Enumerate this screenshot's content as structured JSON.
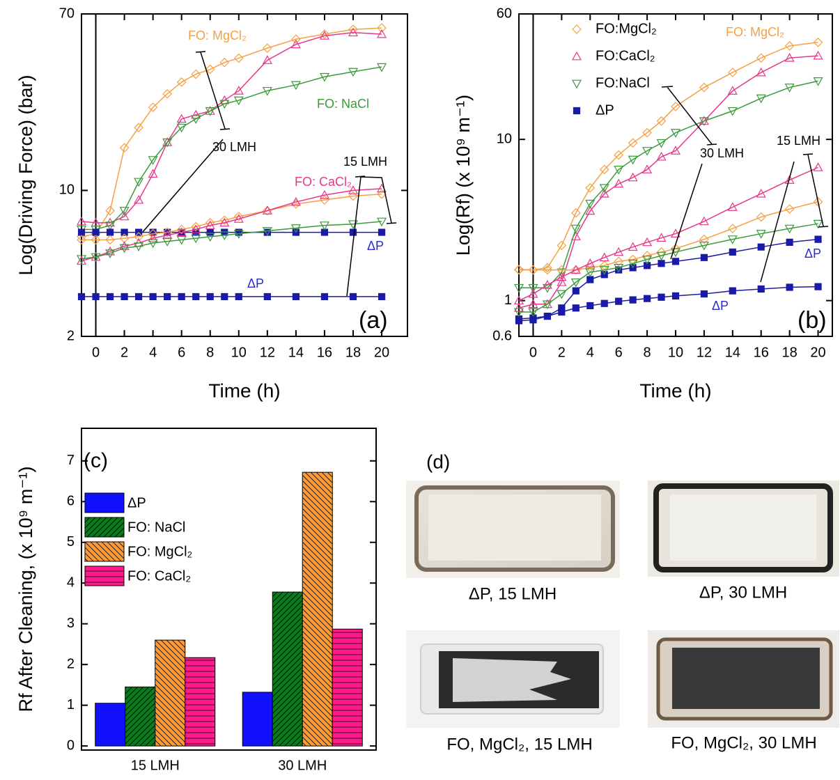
{
  "chart_data": [
    {
      "type": "line",
      "x_label": "Time (h)",
      "y_label": "Log(Driving Force) (bar)",
      "log_y": true,
      "xlim": [
        -1,
        21.8
      ],
      "ylim": [
        2,
        70
      ],
      "xticks": [
        0,
        2,
        4,
        6,
        8,
        10,
        12,
        14,
        16,
        18,
        20
      ],
      "yticks": [
        2,
        10,
        70
      ],
      "x": [
        -1,
        0,
        1,
        2,
        3,
        4,
        5,
        6,
        7,
        8,
        9,
        10,
        12,
        14,
        16,
        18,
        20
      ],
      "series": [
        {
          "color": "#f5a040",
          "marker": "diamond",
          "values": [
            6.0,
            6.2,
            8,
            16,
            20,
            25,
            29,
            33,
            36,
            38,
            41,
            43,
            48,
            53,
            56,
            59,
            60
          ]
        },
        {
          "color": "#e8368c",
          "marker": "triangle",
          "values": [
            7.1,
            7,
            7,
            7.5,
            9,
            12,
            17,
            22,
            23,
            24,
            27,
            30,
            42,
            50,
            55,
            57,
            56
          ]
        },
        {
          "color": "#3a9a3a",
          "marker": "triangle-down",
          "values": [
            6.5,
            6.5,
            6.8,
            8,
            11,
            14,
            17,
            20,
            22,
            24,
            26,
            27,
            30,
            32,
            35,
            37,
            39
          ]
        },
        {
          "color": "#1a1aa8",
          "marker": "square",
          "values": [
            6.3,
            6.3,
            6.3,
            6.3,
            6.3,
            6.3,
            6.3,
            6.3,
            6.3,
            6.3,
            6.3,
            6.3,
            6.3,
            6.3,
            6.3,
            6.3,
            6.3
          ]
        },
        {
          "color": "#f5a040",
          "marker": "diamond",
          "values": [
            5.8,
            5.8,
            5.8,
            5.9,
            6.0,
            6.2,
            6.3,
            6.5,
            6.7,
            7,
            7.2,
            7.5,
            8,
            8.6,
            9,
            9.4,
            9.6
          ]
        },
        {
          "color": "#e8368c",
          "marker": "triangle",
          "values": [
            4.6,
            4.8,
            5.1,
            5.4,
            5.6,
            5.9,
            6.1,
            6.3,
            6.5,
            6.8,
            7,
            7.3,
            8,
            8.8,
            9.5,
            10,
            10.2
          ]
        },
        {
          "color": "#3a9a3a",
          "marker": "triangle-down",
          "values": [
            4.7,
            4.8,
            5.0,
            5.3,
            5.4,
            5.6,
            5.7,
            5.8,
            5.9,
            6.0,
            6.1,
            6.2,
            6.4,
            6.6,
            6.8,
            6.9,
            7.1
          ]
        },
        {
          "color": "#1a1aa8",
          "marker": "square",
          "values": [
            3.1,
            3.1,
            3.1,
            3.1,
            3.1,
            3.1,
            3.1,
            3.1,
            3.1,
            3.1,
            3.1,
            3.1,
            3.1,
            3.1,
            3.1,
            3.1,
            3.1
          ]
        }
      ],
      "annotations": [
        {
          "text": "FO: MgCl₂",
          "color": "#f5a040"
        },
        {
          "text": "FO: NaCl",
          "color": "#3a9a3a"
        },
        {
          "text": "30 LMH",
          "color": "#000000"
        },
        {
          "text": "15 LMH",
          "color": "#000000"
        },
        {
          "text": "FO: CaCl₂",
          "color": "#e8368c"
        },
        {
          "text": "ΔP",
          "color": "#2a2ad0"
        },
        {
          "text": "ΔP",
          "color": "#2a2ad0"
        },
        {
          "text": "(a)",
          "color": "#000000"
        }
      ]
    },
    {
      "type": "line",
      "x_label": "Time (h)",
      "y_label": "Log(Rf) (x 10⁹ m⁻¹)",
      "log_y": true,
      "legend": "upper left",
      "xlim": [
        -1,
        21
      ],
      "ylim": [
        0.6,
        60
      ],
      "xticks": [
        0,
        2,
        4,
        6,
        8,
        10,
        12,
        14,
        16,
        18,
        20
      ],
      "yticks": [
        0.6,
        1,
        10,
        60
      ],
      "x": [
        -1,
        0,
        1,
        2,
        3,
        4,
        5,
        6,
        7,
        8,
        9,
        10,
        12,
        14,
        16,
        18,
        20
      ],
      "series": [
        {
          "name": "FO:MgCl₂",
          "color": "#f5a040",
          "marker": "diamond",
          "values": [
            1.56,
            1.55,
            1.6,
            2.2,
            3.5,
            5,
            6.5,
            8,
            9.5,
            11,
            13,
            16,
            21,
            26,
            32,
            38,
            40
          ]
        },
        {
          "name": "FO:CaCl₂",
          "color": "#e8368c",
          "marker": "triangle",
          "values": [
            0.9,
            0.95,
            0.95,
            1.3,
            2.5,
            3.6,
            4.6,
            5.3,
            5.8,
            6.5,
            7.8,
            8.5,
            13,
            20,
            26,
            32,
            33
          ]
        },
        {
          "name": "FO:NaCl",
          "color": "#3a9a3a",
          "marker": "triangle-down",
          "values": [
            1.2,
            1.2,
            1.2,
            1.5,
            2.8,
            4,
            5,
            6.5,
            7.5,
            8.5,
            9.5,
            11,
            13,
            15,
            18,
            21,
            23
          ]
        },
        {
          "name": "ΔP",
          "color": "#1a1aa8",
          "marker": "square",
          "values": [
            0.77,
            0.78,
            0.8,
            0.9,
            1.15,
            1.35,
            1.45,
            1.55,
            1.6,
            1.65,
            1.7,
            1.75,
            1.85,
            2.0,
            2.15,
            2.3,
            2.4
          ]
        },
        {
          "color": "#f5a040",
          "marker": "diamond",
          "values": [
            1.55,
            1.55,
            1.55,
            1.55,
            1.55,
            1.6,
            1.65,
            1.75,
            1.8,
            1.9,
            2.0,
            2.1,
            2.4,
            2.8,
            3.3,
            3.7,
            4.1
          ]
        },
        {
          "color": "#e8368c",
          "marker": "triangle",
          "values": [
            1.0,
            1.1,
            1.25,
            1.4,
            1.55,
            1.7,
            1.85,
            2.0,
            2.15,
            2.3,
            2.45,
            2.6,
            3.1,
            3.8,
            4.6,
            5.6,
            6.7
          ]
        },
        {
          "color": "#3a9a3a",
          "marker": "triangle-down",
          "values": [
            0.85,
            0.85,
            0.95,
            1.1,
            1.3,
            1.5,
            1.55,
            1.6,
            1.7,
            1.8,
            1.9,
            2.0,
            2.2,
            2.4,
            2.6,
            2.8,
            3.0
          ]
        },
        {
          "color": "#1a1aa8",
          "marker": "square",
          "values": [
            0.75,
            0.76,
            0.8,
            0.85,
            0.9,
            0.93,
            0.96,
            0.99,
            1.01,
            1.03,
            1.05,
            1.07,
            1.1,
            1.15,
            1.18,
            1.21,
            1.22
          ]
        }
      ],
      "annotations": [
        {
          "text": "FO: MgCl₂",
          "color": "#f5a040"
        },
        {
          "text": "30 LMH",
          "color": "#000000"
        },
        {
          "text": "15 LMH",
          "color": "#000000"
        },
        {
          "text": "ΔP",
          "color": "#2a2ad0"
        },
        {
          "text": "ΔP",
          "color": "#2a2ad0"
        },
        {
          "text": "(b)",
          "color": "#000000"
        }
      ]
    },
    {
      "type": "bar",
      "y_label": "Rf After Cleaning, (x 10⁹ m⁻¹)",
      "legend": "upper left",
      "ylim": [
        -0.1,
        7.8
      ],
      "yticks": [
        0,
        1,
        2,
        3,
        4,
        5,
        6,
        7
      ],
      "categories": [
        "15 LMH",
        "30 LMH"
      ],
      "series": [
        {
          "name": "ΔP",
          "color": "#1010ff",
          "hatch": "none",
          "values": [
            1.05,
            1.32
          ]
        },
        {
          "name": "FO: NaCl",
          "color": "#0e7a20",
          "hatch": "slash",
          "values": [
            1.45,
            3.78
          ]
        },
        {
          "name": "FO: MgCl₂",
          "color": "#ff9a30",
          "hatch": "backslash",
          "values": [
            2.6,
            6.72
          ]
        },
        {
          "name": "FO: CaCl₂",
          "color": "#ff1a8c",
          "hatch": "horizontal",
          "values": [
            2.17,
            2.87
          ]
        }
      ],
      "annotations": [
        {
          "text": "(c)",
          "color": "#000000"
        }
      ]
    }
  ],
  "photos": {
    "label": "(d)",
    "captions": [
      "ΔP, 15 LMH",
      "ΔP, 30 LMH",
      "FO, MgCl₂, 15 LMH",
      "FO, MgCl₂, 30 LMH"
    ]
  }
}
